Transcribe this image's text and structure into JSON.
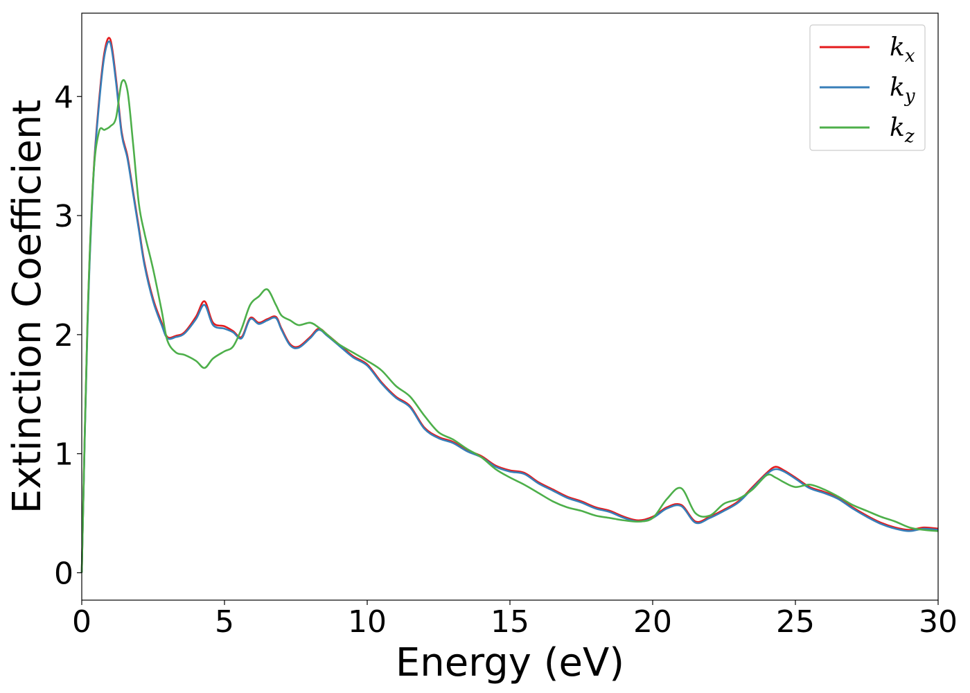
{
  "chart_data": {
    "type": "line",
    "title": "",
    "xlabel": "Energy (eV)",
    "ylabel": "Extinction Coefficient",
    "xlim": [
      0,
      30
    ],
    "ylim": [
      -0.23,
      4.7
    ],
    "xticks": [
      "0",
      "5",
      "10",
      "15",
      "20",
      "25",
      "30"
    ],
    "yticks": [
      "0",
      "1",
      "2",
      "3",
      "4"
    ],
    "grid": false,
    "legend_position": "top-right",
    "series": [
      {
        "name": "k_x",
        "label_base": "k",
        "label_sub": "x",
        "color": "#e41a1c",
        "x": [
          0,
          0.2,
          0.4,
          0.6,
          0.8,
          1.0,
          1.2,
          1.4,
          1.6,
          1.8,
          2.0,
          2.2,
          2.5,
          2.8,
          3.0,
          3.3,
          3.6,
          4.0,
          4.3,
          4.6,
          5.0,
          5.3,
          5.6,
          5.9,
          6.2,
          6.5,
          6.8,
          7.0,
          7.3,
          7.6,
          8.0,
          8.3,
          8.6,
          9.0,
          9.5,
          10.0,
          10.5,
          11.0,
          11.5,
          12.0,
          12.5,
          13.0,
          13.5,
          14.0,
          14.5,
          15.0,
          15.5,
          16.0,
          16.5,
          17.0,
          17.5,
          18.0,
          18.5,
          19.0,
          19.5,
          20.0,
          20.5,
          21.0,
          21.5,
          22.0,
          22.5,
          23.0,
          23.5,
          24.0,
          24.3,
          24.6,
          25.0,
          25.5,
          26.0,
          26.5,
          27.0,
          27.5,
          28.0,
          28.5,
          29.0,
          29.5,
          30.0
        ],
        "y": [
          0.0,
          2.1,
          3.3,
          3.95,
          4.38,
          4.48,
          4.15,
          3.7,
          3.5,
          3.2,
          2.9,
          2.6,
          2.3,
          2.1,
          1.98,
          1.99,
          2.02,
          2.15,
          2.28,
          2.1,
          2.07,
          2.03,
          1.98,
          2.14,
          2.1,
          2.13,
          2.15,
          2.05,
          1.92,
          1.9,
          1.98,
          2.05,
          2.0,
          1.92,
          1.82,
          1.75,
          1.6,
          1.48,
          1.4,
          1.22,
          1.14,
          1.1,
          1.03,
          0.98,
          0.9,
          0.86,
          0.84,
          0.76,
          0.7,
          0.64,
          0.6,
          0.55,
          0.52,
          0.47,
          0.44,
          0.47,
          0.55,
          0.57,
          0.43,
          0.47,
          0.53,
          0.6,
          0.72,
          0.84,
          0.89,
          0.86,
          0.8,
          0.72,
          0.68,
          0.63,
          0.55,
          0.48,
          0.42,
          0.38,
          0.36,
          0.38,
          0.37
        ]
      },
      {
        "name": "k_y",
        "label_base": "k",
        "label_sub": "y",
        "color": "#377eb8",
        "x": [
          0,
          0.2,
          0.4,
          0.6,
          0.8,
          1.0,
          1.2,
          1.4,
          1.6,
          1.8,
          2.0,
          2.2,
          2.5,
          2.8,
          3.0,
          3.3,
          3.6,
          4.0,
          4.3,
          4.6,
          5.0,
          5.3,
          5.6,
          5.9,
          6.2,
          6.5,
          6.8,
          7.0,
          7.3,
          7.6,
          8.0,
          8.3,
          8.6,
          9.0,
          9.5,
          10.0,
          10.5,
          11.0,
          11.5,
          12.0,
          12.5,
          13.0,
          13.5,
          14.0,
          14.5,
          15.0,
          15.5,
          16.0,
          16.5,
          17.0,
          17.5,
          18.0,
          18.5,
          19.0,
          19.5,
          20.0,
          20.5,
          21.0,
          21.5,
          22.0,
          22.5,
          23.0,
          23.5,
          24.0,
          24.3,
          24.6,
          25.0,
          25.5,
          26.0,
          26.5,
          27.0,
          27.5,
          28.0,
          28.5,
          29.0,
          29.5,
          30.0
        ],
        "y": [
          0.0,
          2.05,
          3.28,
          3.92,
          4.35,
          4.45,
          4.12,
          3.68,
          3.48,
          3.18,
          2.88,
          2.58,
          2.28,
          2.08,
          1.97,
          1.98,
          2.01,
          2.13,
          2.25,
          2.08,
          2.05,
          2.02,
          1.97,
          2.13,
          2.09,
          2.12,
          2.14,
          2.04,
          1.91,
          1.89,
          1.97,
          2.04,
          1.99,
          1.91,
          1.81,
          1.74,
          1.59,
          1.47,
          1.39,
          1.21,
          1.13,
          1.09,
          1.02,
          0.97,
          0.89,
          0.85,
          0.83,
          0.75,
          0.69,
          0.63,
          0.59,
          0.54,
          0.51,
          0.46,
          0.43,
          0.46,
          0.54,
          0.56,
          0.42,
          0.46,
          0.52,
          0.59,
          0.71,
          0.83,
          0.87,
          0.85,
          0.79,
          0.71,
          0.67,
          0.62,
          0.54,
          0.47,
          0.41,
          0.37,
          0.35,
          0.37,
          0.36
        ]
      },
      {
        "name": "k_z",
        "label_base": "k",
        "label_sub": "z",
        "color": "#4daf4a",
        "x": [
          0,
          0.2,
          0.4,
          0.6,
          0.8,
          1.0,
          1.2,
          1.4,
          1.6,
          1.8,
          2.0,
          2.2,
          2.5,
          2.8,
          3.0,
          3.3,
          3.6,
          4.0,
          4.3,
          4.6,
          5.0,
          5.3,
          5.6,
          5.9,
          6.2,
          6.5,
          6.8,
          7.0,
          7.3,
          7.6,
          8.0,
          8.3,
          8.6,
          9.0,
          9.5,
          10.0,
          10.5,
          11.0,
          11.5,
          12.0,
          12.5,
          13.0,
          13.5,
          14.0,
          14.5,
          15.0,
          15.5,
          16.0,
          16.5,
          17.0,
          17.5,
          18.0,
          18.5,
          19.0,
          19.5,
          20.0,
          20.5,
          21.0,
          21.5,
          22.0,
          22.5,
          23.0,
          23.5,
          24.0,
          24.3,
          24.6,
          25.0,
          25.5,
          26.0,
          26.5,
          27.0,
          27.5,
          28.0,
          28.5,
          29.0,
          29.5,
          30.0
        ],
        "y": [
          0.0,
          2.1,
          3.3,
          3.7,
          3.72,
          3.75,
          3.82,
          4.12,
          4.05,
          3.6,
          3.1,
          2.85,
          2.55,
          2.2,
          1.95,
          1.85,
          1.83,
          1.78,
          1.72,
          1.8,
          1.86,
          1.9,
          2.05,
          2.25,
          2.32,
          2.38,
          2.25,
          2.16,
          2.12,
          2.08,
          2.1,
          2.06,
          2.0,
          1.92,
          1.85,
          1.78,
          1.7,
          1.57,
          1.48,
          1.32,
          1.18,
          1.12,
          1.04,
          0.97,
          0.87,
          0.8,
          0.74,
          0.67,
          0.6,
          0.55,
          0.52,
          0.48,
          0.46,
          0.44,
          0.43,
          0.46,
          0.62,
          0.71,
          0.5,
          0.48,
          0.58,
          0.62,
          0.7,
          0.82,
          0.8,
          0.76,
          0.72,
          0.74,
          0.7,
          0.64,
          0.57,
          0.52,
          0.47,
          0.43,
          0.38,
          0.36,
          0.35
        ]
      }
    ]
  }
}
